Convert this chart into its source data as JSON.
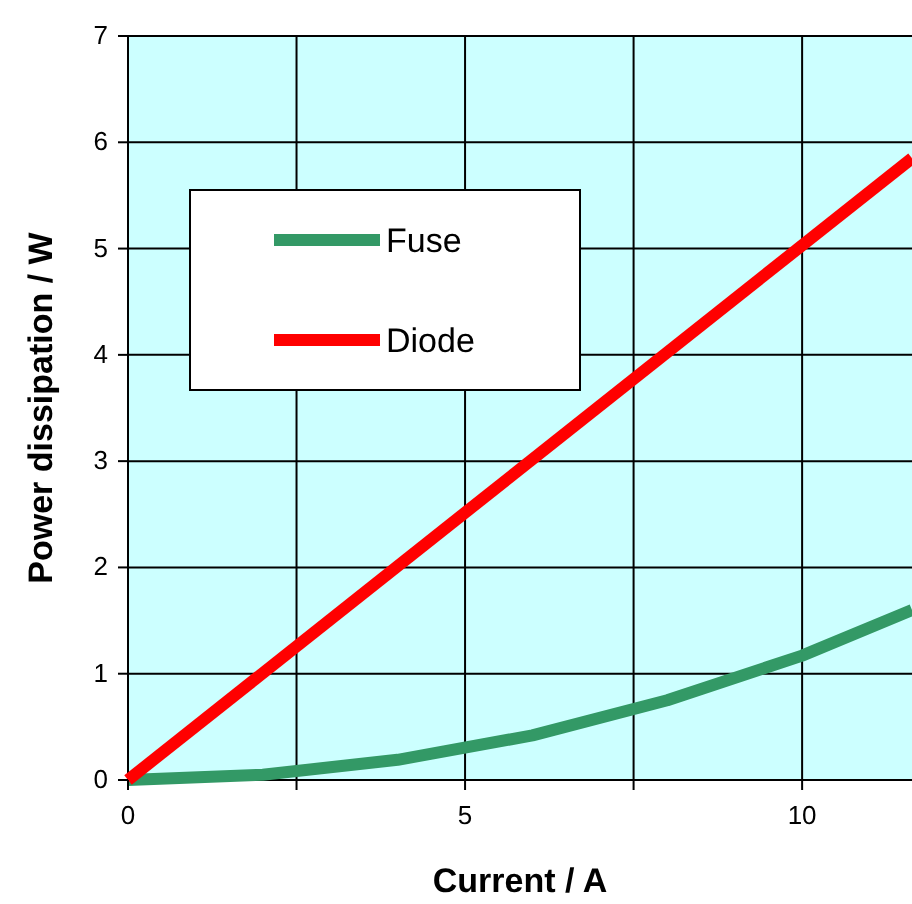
{
  "chart_data": {
    "type": "line",
    "xlabel": "Current / A",
    "ylabel": "Power dissipation / W",
    "xlim": [
      0,
      11.63
    ],
    "xticks": [
      0,
      {
        "value": 2.5,
        "label": null
      },
      5,
      {
        "value": 7.5,
        "label": null
      },
      10
    ],
    "ylim": [
      0,
      7
    ],
    "yticks": [
      0,
      1,
      2,
      3,
      4,
      5,
      6,
      7
    ],
    "grid": true,
    "legend": "top left",
    "series": [
      {
        "name": "Fuse",
        "color": "#339966",
        "x": [
          0,
          2,
          4,
          6,
          8,
          10,
          11.63
        ],
        "values": [
          0,
          0.05,
          0.19,
          0.42,
          0.75,
          1.17,
          1.6
        ]
      },
      {
        "name": "Diode",
        "color": "#ff0000",
        "x": [
          0,
          11.63
        ],
        "values": [
          0,
          5.85
        ]
      }
    ]
  }
}
